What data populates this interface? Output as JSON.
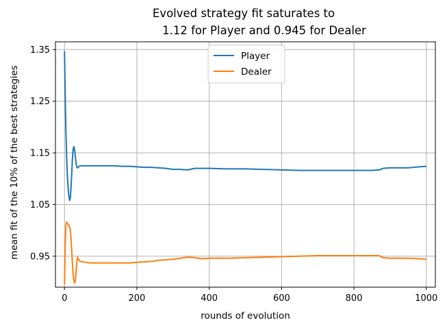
{
  "chart_data": {
    "type": "line",
    "title": [
      "Evolved strategy fit saturates to",
      "1.12 for Player and 0.945 for Dealer"
    ],
    "xlabel": "rounds of evolution",
    "ylabel": "mean fit of the 10% of the best strategies",
    "xlim": [
      -25,
      1025
    ],
    "ylim": [
      0.89,
      1.365
    ],
    "xticks": [
      0,
      200,
      400,
      600,
      800,
      1000
    ],
    "xtick_labels": [
      "0",
      "200",
      "400",
      "600",
      "800",
      "1000"
    ],
    "yticks": [
      0.95,
      1.05,
      1.15,
      1.25,
      1.35
    ],
    "ytick_labels": [
      "0.95",
      "1.05",
      "1.15",
      "1.25",
      "1.35"
    ],
    "grid": true,
    "legend": "upper-center",
    "series": [
      {
        "name": "Player",
        "color": "#1f77b4",
        "x": [
          0,
          2,
          4,
          6,
          8,
          10,
          12,
          14,
          16,
          18,
          20,
          22,
          24,
          26,
          28,
          30,
          32,
          34,
          36,
          38,
          40,
          45,
          50,
          60,
          70,
          80,
          100,
          120,
          140,
          160,
          180,
          200,
          220,
          240,
          260,
          280,
          300,
          320,
          340,
          360,
          380,
          400,
          450,
          500,
          550,
          600,
          650,
          700,
          750,
          800,
          850,
          870,
          880,
          900,
          950,
          980,
          1000
        ],
        "values": [
          1.347,
          1.26,
          1.19,
          1.14,
          1.105,
          1.083,
          1.067,
          1.058,
          1.062,
          1.082,
          1.11,
          1.14,
          1.158,
          1.162,
          1.155,
          1.142,
          1.13,
          1.123,
          1.121,
          1.122,
          1.124,
          1.125,
          1.125,
          1.125,
          1.125,
          1.125,
          1.125,
          1.125,
          1.125,
          1.124,
          1.124,
          1.123,
          1.122,
          1.122,
          1.121,
          1.12,
          1.118,
          1.118,
          1.117,
          1.12,
          1.12,
          1.12,
          1.119,
          1.119,
          1.118,
          1.117,
          1.116,
          1.116,
          1.116,
          1.116,
          1.116,
          1.117,
          1.12,
          1.121,
          1.121,
          1.123,
          1.124
        ]
      },
      {
        "name": "Dealer",
        "color": "#ff7f0e",
        "x": [
          0,
          2,
          4,
          6,
          8,
          10,
          12,
          14,
          16,
          18,
          20,
          22,
          24,
          26,
          28,
          30,
          32,
          34,
          36,
          38,
          40,
          45,
          50,
          60,
          70,
          80,
          100,
          120,
          140,
          160,
          180,
          200,
          220,
          240,
          260,
          280,
          300,
          320,
          340,
          360,
          380,
          400,
          450,
          500,
          550,
          600,
          650,
          700,
          750,
          800,
          850,
          870,
          880,
          900,
          950,
          980,
          1000
        ],
        "values": [
          0.895,
          0.97,
          1.012,
          1.016,
          1.014,
          1.01,
          1.01,
          1.007,
          1.002,
          0.985,
          0.96,
          0.935,
          0.915,
          0.902,
          0.898,
          0.902,
          0.918,
          0.938,
          0.948,
          0.945,
          0.942,
          0.94,
          0.939,
          0.938,
          0.937,
          0.937,
          0.937,
          0.937,
          0.937,
          0.937,
          0.937,
          0.938,
          0.939,
          0.94,
          0.942,
          0.943,
          0.944,
          0.946,
          0.948,
          0.947,
          0.945,
          0.946,
          0.946,
          0.947,
          0.948,
          0.949,
          0.95,
          0.951,
          0.951,
          0.951,
          0.951,
          0.951,
          0.947,
          0.946,
          0.946,
          0.945,
          0.944
        ]
      }
    ]
  }
}
